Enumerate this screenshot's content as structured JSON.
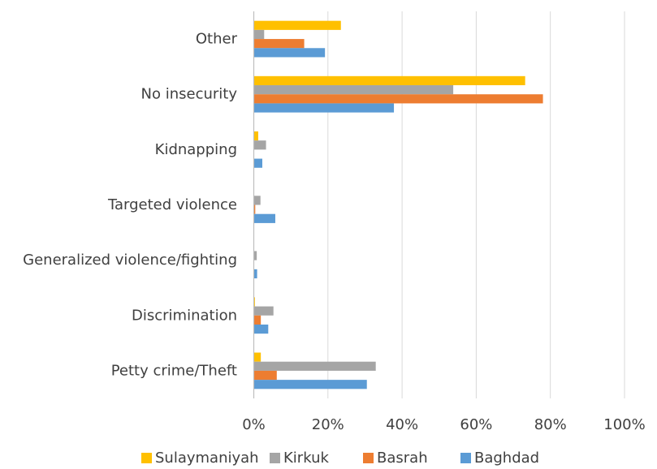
{
  "chart_data": {
    "type": "bar",
    "orientation": "horizontal",
    "categories": [
      "Other",
      "No insecurity",
      "Kidnapping",
      "Targeted violence",
      "Generalized violence/fighting",
      "Discrimination",
      "Petty crime/Theft"
    ],
    "series": [
      {
        "name": "Sulaymaniyah",
        "color": "#FFC000",
        "values": [
          23.5,
          73.2,
          1.2,
          0,
          0,
          0.3,
          1.9
        ]
      },
      {
        "name": "Kirkuk",
        "color": "#A5A5A5",
        "values": [
          2.8,
          53.8,
          3.3,
          1.8,
          0.8,
          5.3,
          32.9
        ]
      },
      {
        "name": "Basrah",
        "color": "#ED7D31",
        "values": [
          13.6,
          78.0,
          0,
          0.4,
          0,
          1.9,
          6.2
        ]
      },
      {
        "name": "Baghdad",
        "color": "#5B9BD5",
        "values": [
          19.2,
          37.8,
          2.3,
          5.8,
          0.9,
          3.9,
          30.5
        ]
      }
    ],
    "xlim": [
      0,
      100
    ],
    "x_ticks": [
      "0%",
      "20%",
      "40%",
      "60%",
      "80%",
      "100%"
    ],
    "grid": true,
    "legend_position": "bottom",
    "legend_order": [
      "Sulaymaniyah",
      "Kirkuk",
      "Basrah",
      "Baghdad"
    ],
    "colors": {
      "grid": "#D9D9D9",
      "axis": "#BFBFBF",
      "text": "#404040"
    }
  }
}
